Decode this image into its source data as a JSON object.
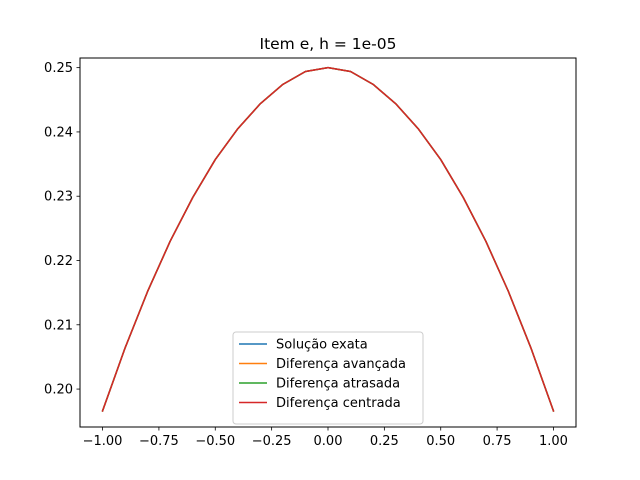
{
  "chart_data": {
    "type": "line",
    "title": "Item e, h = 1e-05",
    "xlabel": "",
    "ylabel": "",
    "xlim": [
      -1.1,
      1.1
    ],
    "ylim": [
      0.1941,
      0.2515
    ],
    "x_ticks": [
      -1.0,
      -0.75,
      -0.5,
      -0.25,
      0.0,
      0.25,
      0.5,
      0.75,
      1.0
    ],
    "x_tick_labels": [
      "−1.00",
      "−0.75",
      "−0.50",
      "−0.25",
      "0.00",
      "0.25",
      "0.50",
      "0.75",
      "1.00"
    ],
    "y_ticks": [
      0.2,
      0.21,
      0.22,
      0.23,
      0.24,
      0.25
    ],
    "y_tick_labels": [
      "0.20",
      "0.21",
      "0.22",
      "0.23",
      "0.24",
      "0.25"
    ],
    "grid": false,
    "legend_position": "lower center",
    "x": [
      -1.0,
      -0.9,
      -0.8,
      -0.7,
      -0.6,
      -0.5,
      -0.4,
      -0.3,
      -0.2,
      -0.1,
      0.0,
      0.1,
      0.2,
      0.3,
      0.4,
      0.5,
      0.6,
      0.7,
      0.8,
      0.9,
      1.0
    ],
    "series": [
      {
        "name": "Solução exata",
        "color": "#1f77b4",
        "values": [
          0.1966,
          0.2064,
          0.2152,
          0.223,
          0.2298,
          0.2357,
          0.2405,
          0.2444,
          0.2474,
          0.2494,
          0.25,
          0.2494,
          0.2474,
          0.2444,
          0.2405,
          0.2357,
          0.2298,
          0.223,
          0.2152,
          0.2064,
          0.1966
        ]
      },
      {
        "name": "Diferença avançada",
        "color": "#ff7f0e",
        "values": [
          0.1966,
          0.2064,
          0.2152,
          0.223,
          0.2298,
          0.2357,
          0.2405,
          0.2444,
          0.2474,
          0.2494,
          0.25,
          0.2494,
          0.2474,
          0.2444,
          0.2405,
          0.2357,
          0.2298,
          0.223,
          0.2152,
          0.2064,
          0.1966
        ]
      },
      {
        "name": "Diferença atrasada",
        "color": "#2ca02c",
        "values": [
          0.1966,
          0.2064,
          0.2152,
          0.223,
          0.2298,
          0.2357,
          0.2405,
          0.2444,
          0.2474,
          0.2494,
          0.25,
          0.2494,
          0.2474,
          0.2444,
          0.2405,
          0.2357,
          0.2298,
          0.223,
          0.2152,
          0.2064,
          0.1966
        ]
      },
      {
        "name": "Diferença centrada",
        "color": "#d62728",
        "values": [
          0.1966,
          0.2064,
          0.2152,
          0.223,
          0.2298,
          0.2357,
          0.2405,
          0.2444,
          0.2474,
          0.2494,
          0.25,
          0.2494,
          0.2474,
          0.2444,
          0.2405,
          0.2357,
          0.2298,
          0.223,
          0.2152,
          0.2064,
          0.1966
        ]
      }
    ]
  }
}
